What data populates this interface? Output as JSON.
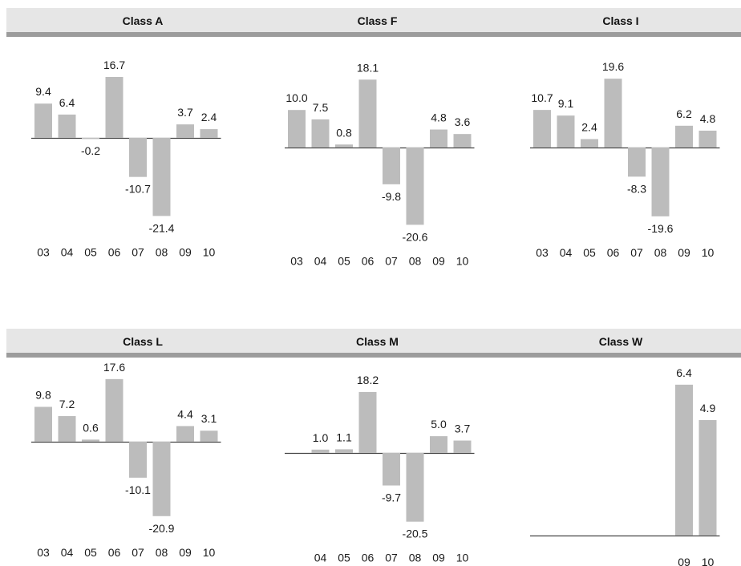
{
  "colors": {
    "bar": "#bcbcbc",
    "axis": "#444444",
    "header_bg": "#e6e6e6",
    "header_rule": "#9c9c9c"
  },
  "chart_data": [
    {
      "type": "bar",
      "title": "Class A",
      "categories": [
        "03",
        "04",
        "05",
        "06",
        "07",
        "08",
        "09",
        "10"
      ],
      "values": [
        9.4,
        6.4,
        -0.2,
        16.7,
        -10.7,
        -21.4,
        3.7,
        2.4
      ],
      "labels": [
        "9.4",
        "6.4",
        "-0.2",
        "16.7",
        "-10.7",
        "-21.4",
        "3.7",
        "2.4"
      ]
    },
    {
      "type": "bar",
      "title": "Class F",
      "categories": [
        "03",
        "04",
        "05",
        "06",
        "07",
        "08",
        "09",
        "10"
      ],
      "values": [
        10.0,
        7.5,
        0.8,
        18.1,
        -9.8,
        -20.6,
        4.8,
        3.6
      ],
      "labels": [
        "10.0",
        "7.5",
        "0.8",
        "18.1",
        "-9.8",
        "-20.6",
        "4.8",
        "3.6"
      ]
    },
    {
      "type": "bar",
      "title": "Class I",
      "categories": [
        "03",
        "04",
        "05",
        "06",
        "07",
        "08",
        "09",
        "10"
      ],
      "values": [
        10.7,
        9.1,
        2.4,
        19.6,
        -8.3,
        -19.6,
        6.2,
        4.8
      ],
      "labels": [
        "10.7",
        "9.1",
        "2.4",
        "19.6",
        "-8.3",
        "-19.6",
        "6.2",
        "4.8"
      ]
    },
    {
      "type": "bar",
      "title": "Class L",
      "categories": [
        "03",
        "04",
        "05",
        "06",
        "07",
        "08",
        "09",
        "10"
      ],
      "values": [
        9.8,
        7.2,
        0.6,
        17.6,
        -10.1,
        -20.9,
        4.4,
        3.1
      ],
      "labels": [
        "9.8",
        "7.2",
        "0.6",
        "17.6",
        "-10.1",
        "-20.9",
        "4.4",
        "3.1"
      ]
    },
    {
      "type": "bar",
      "title": "Class M",
      "categories": [
        "04",
        "05",
        "06",
        "07",
        "08",
        "09",
        "10"
      ],
      "values": [
        1.0,
        1.1,
        18.2,
        -9.7,
        -20.5,
        5.0,
        3.7
      ],
      "labels": [
        "1.0",
        "1.1",
        "18.2",
        "-9.7",
        "-20.5",
        "5.0",
        "3.7"
      ]
    },
    {
      "type": "bar",
      "title": "Class W",
      "categories": [
        "09",
        "10"
      ],
      "values": [
        6.4,
        4.9
      ],
      "labels": [
        "6.4",
        "4.9"
      ]
    }
  ]
}
